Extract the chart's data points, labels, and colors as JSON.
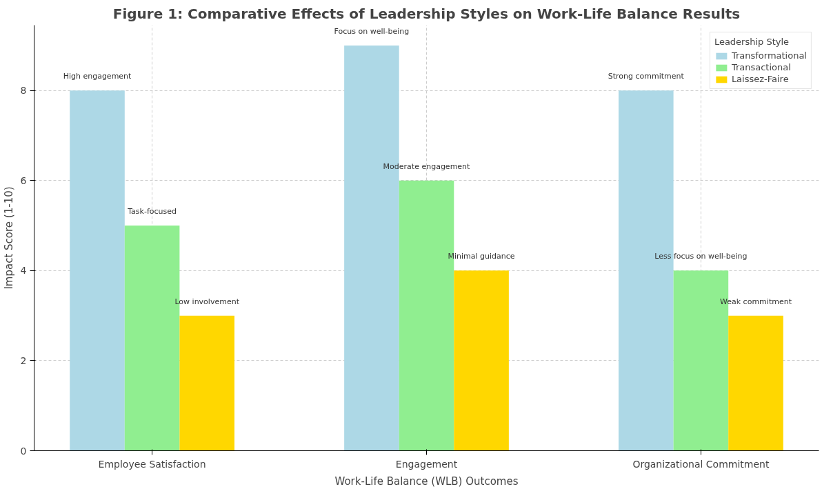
{
  "chart_data": {
    "type": "bar",
    "title": "Figure 1: Comparative Effects of Leadership Styles on Work-Life Balance Results",
    "xlabel": "Work-Life Balance (WLB) Outcomes",
    "ylabel": "Impact Score (1-10)",
    "legend_title": "Leadership Style",
    "legend": "top right",
    "grid": true,
    "categories": [
      "Employee Satisfaction",
      "Engagement",
      "Organizational Commitment"
    ],
    "series": [
      {
        "name": "Transformational",
        "color": "#add8e6",
        "values": [
          8,
          9,
          8
        ]
      },
      {
        "name": "Transactional",
        "color": "#90ee90",
        "values": [
          5,
          6,
          4
        ]
      },
      {
        "name": "Laissez-Faire",
        "color": "#ffd700",
        "values": [
          3,
          4,
          3
        ]
      }
    ],
    "ylim": [
      0,
      9.45
    ],
    "yticks": [
      0,
      2,
      4,
      6,
      8
    ],
    "annotations": [
      "High engagement",
      "Task-focused",
      "Low involvement",
      "Focus on well-being",
      "Moderate engagement",
      "Minimal guidance",
      "Strong commitment",
      "Less focus on well-being",
      "Weak commitment"
    ]
  }
}
